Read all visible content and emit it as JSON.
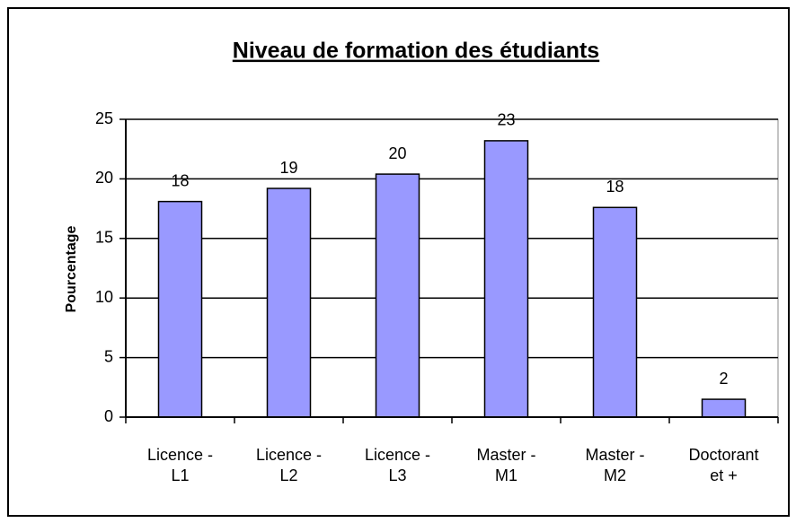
{
  "chart_data": {
    "type": "bar",
    "title": "Niveau de formation des étudiants",
    "y_label": "Pourcentage",
    "categories": [
      [
        "Licence -",
        "L1"
      ],
      [
        "Licence -",
        "L2"
      ],
      [
        "Licence -",
        "L3"
      ],
      [
        "Master -",
        "M1"
      ],
      [
        "Master -",
        "M2"
      ],
      [
        "Doctorant",
        "et +"
      ]
    ],
    "values": [
      18.1,
      19.2,
      20.4,
      23.2,
      17.6,
      1.5
    ],
    "value_labels": [
      "18",
      "19",
      "20",
      "23",
      "18",
      "2"
    ],
    "color": "#9999ff",
    "ylim": [
      0,
      25
    ],
    "yticks": [
      0,
      5,
      10,
      15,
      20,
      25
    ],
    "grid": true
  }
}
